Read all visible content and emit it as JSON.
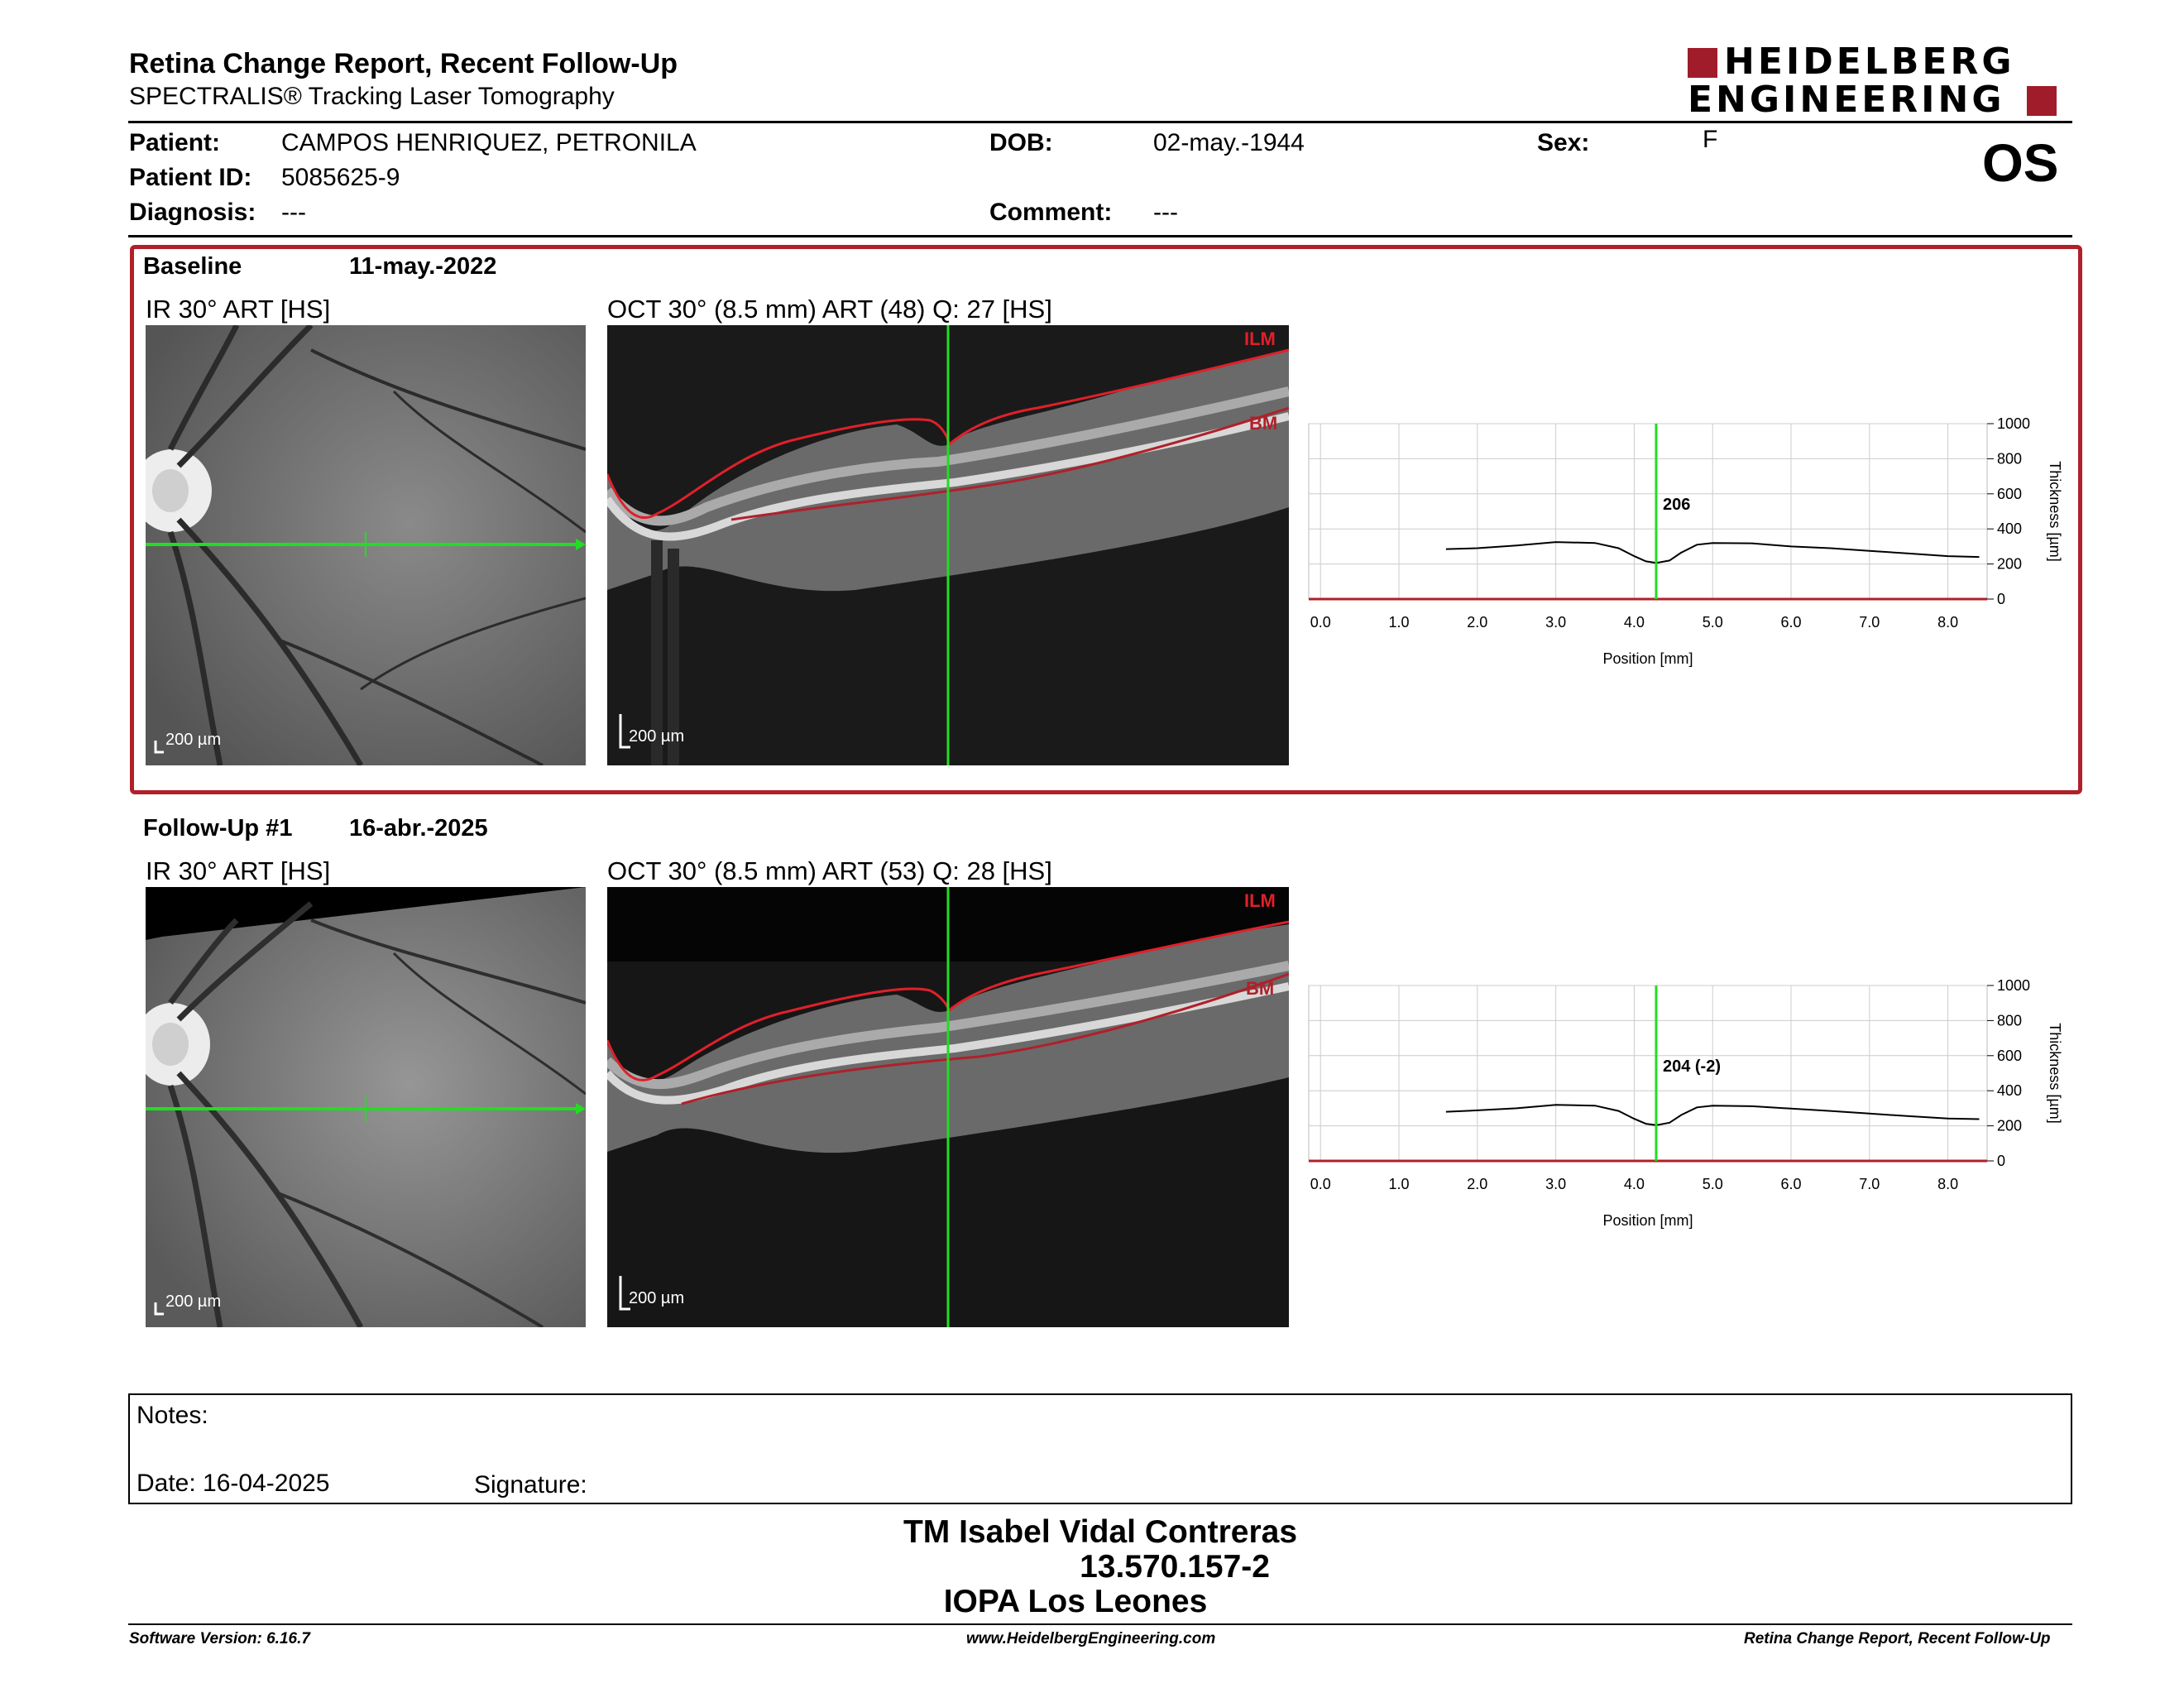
{
  "header": {
    "title": "Retina Change Report, Recent Follow-Up",
    "subtitle": "SPECTRALIS® Tracking Laser Tomography",
    "logo_line1": "HEIDELBERG",
    "logo_line2": "ENGINEERING",
    "eye": "OS"
  },
  "patient": {
    "name_label": "Patient:",
    "name": "CAMPOS HENRIQUEZ, PETRONILA",
    "id_label": "Patient ID:",
    "id": "5085625-9",
    "diag_label": "Diagnosis:",
    "diagnosis": "---",
    "dob_label": "DOB:",
    "dob": "02-may.-1944",
    "comment_label": "Comment:",
    "comment": "---",
    "sex_label": "Sex:",
    "sex": "F"
  },
  "baseline": {
    "label": "Baseline",
    "date": "11-may.-2022",
    "ir_title": "IR 30° ART [HS]",
    "oct_title": "OCT 30° (8.5 mm) ART (48) Q: 27 [HS]",
    "scale": "200 µm",
    "ilm": "ILM",
    "bm": "BM"
  },
  "followup": {
    "label": "Follow-Up #1",
    "date": "16-abr.-2025",
    "ir_title": "IR 30° ART [HS]",
    "oct_title": "OCT 30° (8.5 mm) ART (53) Q: 28 [HS]",
    "scale": "200 µm",
    "ilm": "ILM",
    "bm": "BM"
  },
  "chart_data": [
    {
      "type": "line",
      "xlabel": "Position [mm]",
      "ylabel": "Thickness [µm]",
      "xlim": [
        -0.15,
        8.5
      ],
      "ylim": [
        0,
        1000
      ],
      "x_ticks": [
        "0.0",
        "1.0",
        "2.0",
        "3.0",
        "4.0",
        "5.0",
        "6.0",
        "7.0",
        "8.0"
      ],
      "y_ticks": [
        "0",
        "200",
        "400",
        "600",
        "800",
        "1000"
      ],
      "cursor_x": 4.28,
      "cursor_label": "206",
      "grid": true,
      "colors": {
        "line": "#000000",
        "cursor": "#22dd22",
        "axis_zero": "#b0202a"
      },
      "x": [
        1.6,
        2.0,
        2.5,
        3.0,
        3.5,
        3.8,
        4.0,
        4.15,
        4.28,
        4.45,
        4.6,
        4.8,
        5.0,
        5.5,
        6.0,
        6.5,
        7.0,
        7.5,
        8.0,
        8.4
      ],
      "values": [
        285,
        290,
        305,
        325,
        320,
        290,
        245,
        215,
        206,
        220,
        265,
        310,
        320,
        318,
        300,
        290,
        275,
        260,
        245,
        240
      ]
    },
    {
      "type": "line",
      "xlabel": "Position [mm]",
      "ylabel": "Thickness [µm]",
      "xlim": [
        -0.15,
        8.5
      ],
      "ylim": [
        0,
        1000
      ],
      "x_ticks": [
        "0.0",
        "1.0",
        "2.0",
        "3.0",
        "4.0",
        "5.0",
        "6.0",
        "7.0",
        "8.0"
      ],
      "y_ticks": [
        "0",
        "200",
        "400",
        "600",
        "800",
        "1000"
      ],
      "cursor_x": 4.28,
      "cursor_label": "204 (-2)",
      "grid": true,
      "colors": {
        "line": "#000000",
        "cursor": "#22dd22",
        "axis_zero": "#b0202a"
      },
      "x": [
        1.6,
        2.0,
        2.5,
        3.0,
        3.5,
        3.8,
        4.0,
        4.15,
        4.28,
        4.45,
        4.6,
        4.8,
        5.0,
        5.5,
        6.0,
        6.5,
        7.0,
        7.5,
        8.0,
        8.4
      ],
      "values": [
        280,
        288,
        300,
        320,
        315,
        285,
        240,
        212,
        204,
        218,
        262,
        305,
        315,
        312,
        298,
        285,
        270,
        255,
        242,
        238
      ]
    }
  ],
  "notes": {
    "label": "Notes:",
    "date_label": "Date: 16-04-2025",
    "signature_label": "Signature:"
  },
  "signer": {
    "name": "TM Isabel Vidal Contreras",
    "rut": "13.570.157-2",
    "org": "IOPA Los Leones"
  },
  "footer": {
    "version": "Software Version: 6.16.7",
    "url": "www.HeidelbergEngineering.com",
    "report": "Retina Change Report, Recent Follow-Up"
  }
}
